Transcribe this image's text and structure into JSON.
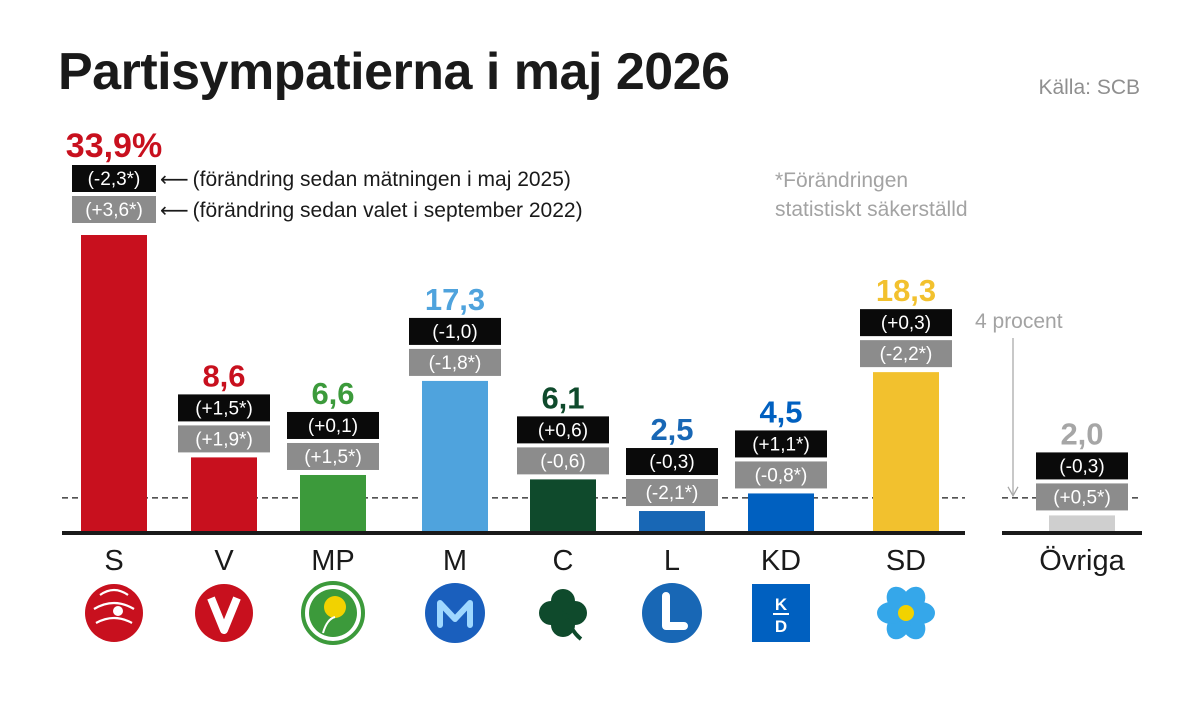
{
  "header": {
    "title": "Partisympatierna i maj 2026",
    "source": "Källa: SCB"
  },
  "legend": {
    "since_may_2025": "(förändring sedan mätningen i maj 2025)",
    "since_election_2022": "(förändring sedan valet i september 2022)"
  },
  "note": {
    "line1": "*Förändringen",
    "line2": "statistiskt säkerställd"
  },
  "threshold": {
    "label": "4 procent",
    "value": 4
  },
  "chart_data": {
    "type": "bar",
    "title": "Partisympatierna i maj 2026",
    "categories": [
      "S",
      "V",
      "MP",
      "M",
      "C",
      "L",
      "KD",
      "SD",
      "Övriga"
    ],
    "values": [
      33.9,
      8.6,
      6.6,
      17.3,
      6.1,
      2.5,
      4.5,
      18.3,
      2.0
    ],
    "value_labels": [
      "33,9%",
      "8,6",
      "6,6",
      "17,3",
      "6,1",
      "2,5",
      "4,5",
      "18,3",
      "2,0"
    ],
    "change_since_may_2025": [
      "(-2,3*)",
      "(+1,5*)",
      "(+0,1)",
      "(-1,0)",
      "(+0,6)",
      "(-0,3)",
      "(+1,1*)",
      "(+0,3)",
      "(-0,3)"
    ],
    "change_since_election_2022": [
      "(+3,6*)",
      "(+1,9*)",
      "(+1,5*)",
      "(-1,8*)",
      "(-0,6)",
      "(-2,1*)",
      "(-0,8*)",
      "(-2,2*)",
      "(+0,5*)"
    ],
    "colors": [
      "#c8101e",
      "#c8101e",
      "#3c9a3b",
      "#4fa3dd",
      "#0f4a2c",
      "#1867b5",
      "#0060c0",
      "#f2c12e",
      "#cfcfcf"
    ],
    "value_label_colors": [
      "#c8101e",
      "#c8101e",
      "#3c9a3b",
      "#4fa3dd",
      "#0f4a2c",
      "#1867b5",
      "#0060c0",
      "#f2c12e",
      "#a6a6a6"
    ],
    "icons": [
      "rose-icon",
      "v-logo-icon",
      "dandelion-icon",
      "m-logo-icon",
      "clover-icon",
      "l-logo-icon",
      "kd-logo-icon",
      "anemone-icon",
      ""
    ],
    "kd_logo_text": [
      "K",
      "D"
    ],
    "reference_line": 4,
    "ylim": [
      0,
      35
    ],
    "grid": false,
    "legend": "top-left annotations"
  }
}
